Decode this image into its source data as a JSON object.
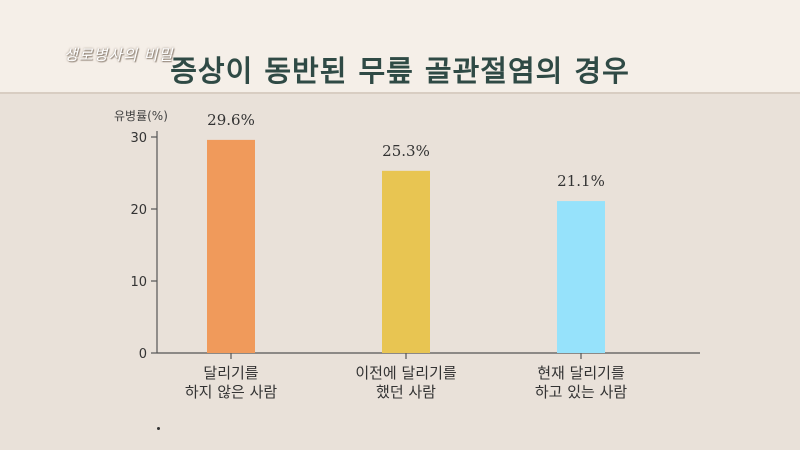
{
  "header": {
    "logo_text": "생로병사의 비밀",
    "title": "증상이 동반된 무릎 골관절염의 경우"
  },
  "chart_data": {
    "type": "bar",
    "ylabel": "유병률(%)",
    "ylim": [
      0,
      30
    ],
    "yticks": [
      0,
      10,
      20,
      30
    ],
    "categories": [
      "달리기를\n하지 않은 사람",
      "이전에 달리기를\n했던 사람",
      "현재 달리기를\n하고 있는 사람"
    ],
    "values": [
      29.6,
      25.3,
      21.1
    ],
    "data_labels": [
      "29.6%",
      "25.3%",
      "21.1%"
    ],
    "colors": [
      "#f09a5b",
      "#e8c552",
      "#96e2fb"
    ]
  }
}
